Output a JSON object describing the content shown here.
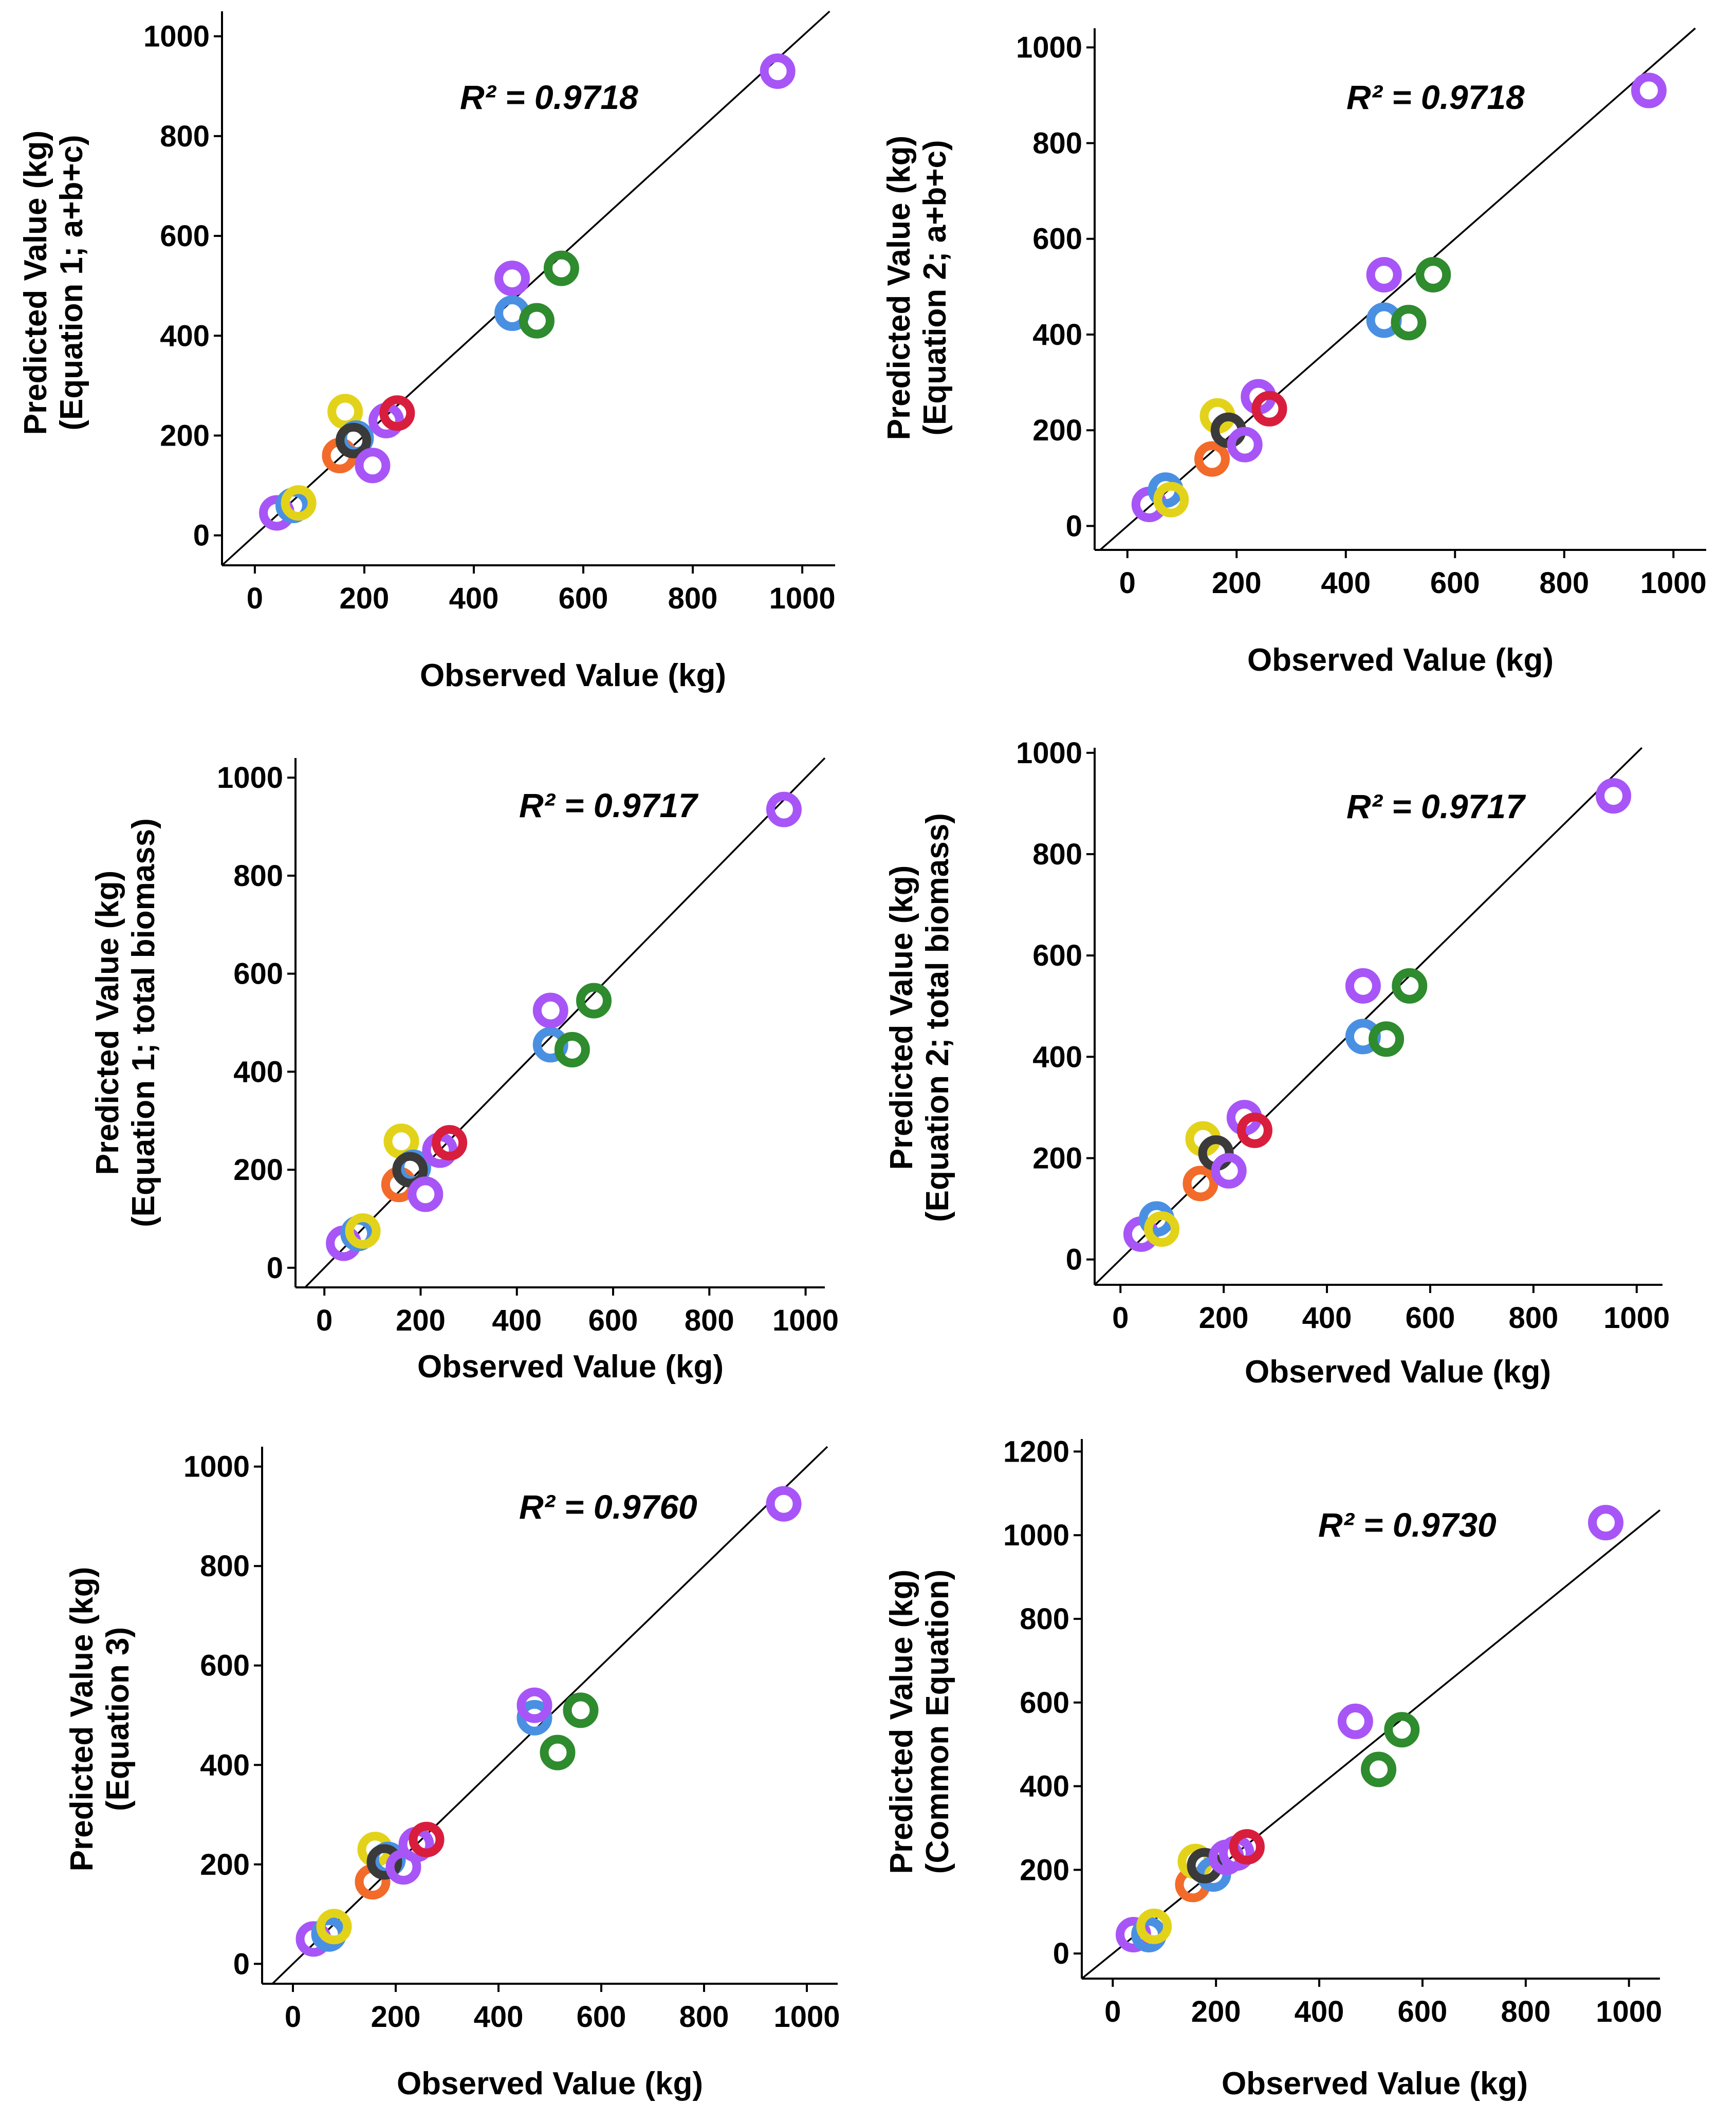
{
  "colors": {
    "purple": "#A855F7",
    "blue": "#4A90E2",
    "green": "#2E8B2E",
    "red": "#D81E3C",
    "orange": "#F26B2A",
    "yellow": "#E2D31A",
    "black": "#3A3A3A",
    "axis": "#000000"
  },
  "chart_data": [
    {
      "type": "scatter",
      "xlabel": "Observed Value (kg)",
      "ylabel_lines": [
        "Predicted Value (kg)",
        "(Equation 1; a+b+c)"
      ],
      "r2_label": "R² = 0.9718",
      "xlim": [
        -60,
        1060
      ],
      "ylim": [
        -60,
        1050
      ],
      "xticks": [
        0,
        200,
        400,
        600,
        800,
        1000
      ],
      "yticks": [
        0,
        200,
        400,
        600,
        800,
        1000
      ],
      "ytick_labels": [
        "0",
        "200",
        "400",
        "600",
        "800",
        "1000"
      ],
      "xtick_labels": [
        "0",
        "200",
        "400",
        "600",
        "800",
        "1000"
      ],
      "points": [
        {
          "x": 40,
          "y": 45,
          "color": "purple"
        },
        {
          "x": 70,
          "y": 60,
          "color": "blue"
        },
        {
          "x": 80,
          "y": 65,
          "color": "yellow"
        },
        {
          "x": 155,
          "y": 160,
          "color": "orange"
        },
        {
          "x": 165,
          "y": 248,
          "color": "yellow"
        },
        {
          "x": 185,
          "y": 195,
          "color": "blue"
        },
        {
          "x": 180,
          "y": 190,
          "color": "black"
        },
        {
          "x": 215,
          "y": 140,
          "color": "purple"
        },
        {
          "x": 240,
          "y": 230,
          "color": "purple"
        },
        {
          "x": 260,
          "y": 245,
          "color": "red"
        },
        {
          "x": 470,
          "y": 445,
          "color": "blue"
        },
        {
          "x": 470,
          "y": 515,
          "color": "purple"
        },
        {
          "x": 515,
          "y": 430,
          "color": "green"
        },
        {
          "x": 560,
          "y": 535,
          "color": "green"
        },
        {
          "x": 955,
          "y": 930,
          "color": "purple"
        }
      ]
    },
    {
      "type": "scatter",
      "xlabel": "Observed Value (kg)",
      "ylabel_lines": [
        "Predicted Value (kg)",
        "(Equation 2; a+b+c)"
      ],
      "r2_label": "R² = 0.9718",
      "xlim": [
        -60,
        1060
      ],
      "ylim": [
        -50,
        1040
      ],
      "xticks": [
        0,
        200,
        400,
        600,
        800,
        1000
      ],
      "yticks": [
        0,
        200,
        400,
        600,
        800,
        1000
      ],
      "ytick_labels": [
        "0",
        "200",
        "400",
        "600",
        "800",
        "1000"
      ],
      "xtick_labels": [
        "0",
        "200",
        "400",
        "600",
        "800",
        "1000"
      ],
      "points": [
        {
          "x": 40,
          "y": 45,
          "color": "purple"
        },
        {
          "x": 70,
          "y": 75,
          "color": "blue"
        },
        {
          "x": 80,
          "y": 55,
          "color": "yellow"
        },
        {
          "x": 155,
          "y": 140,
          "color": "orange"
        },
        {
          "x": 165,
          "y": 230,
          "color": "yellow"
        },
        {
          "x": 185,
          "y": 200,
          "color": "black"
        },
        {
          "x": 215,
          "y": 170,
          "color": "purple"
        },
        {
          "x": 240,
          "y": 270,
          "color": "purple"
        },
        {
          "x": 260,
          "y": 245,
          "color": "red"
        },
        {
          "x": 470,
          "y": 430,
          "color": "blue"
        },
        {
          "x": 470,
          "y": 525,
          "color": "purple"
        },
        {
          "x": 515,
          "y": 425,
          "color": "green"
        },
        {
          "x": 560,
          "y": 525,
          "color": "green"
        },
        {
          "x": 955,
          "y": 910,
          "color": "purple"
        }
      ]
    },
    {
      "type": "scatter",
      "xlabel": "Observed Value (kg)",
      "ylabel_lines": [
        "Predicted Value (kg)",
        "(Equation 1; total biomass)"
      ],
      "r2_label": "R² = 0.9717",
      "xlim": [
        -60,
        1040
      ],
      "ylim": [
        -40,
        1040
      ],
      "xticks": [
        0,
        200,
        400,
        600,
        800,
        1000
      ],
      "yticks": [
        0,
        200,
        400,
        600,
        800,
        1000
      ],
      "ytick_labels": [
        "0",
        "200",
        "400",
        "600",
        "800",
        "1000"
      ],
      "xtick_labels": [
        "0",
        "200",
        "400",
        "600",
        "800",
        "1000"
      ],
      "points": [
        {
          "x": 40,
          "y": 50,
          "color": "purple"
        },
        {
          "x": 70,
          "y": 70,
          "color": "blue"
        },
        {
          "x": 80,
          "y": 75,
          "color": "yellow"
        },
        {
          "x": 155,
          "y": 170,
          "color": "orange"
        },
        {
          "x": 160,
          "y": 258,
          "color": "yellow"
        },
        {
          "x": 185,
          "y": 205,
          "color": "blue"
        },
        {
          "x": 178,
          "y": 200,
          "color": "black"
        },
        {
          "x": 210,
          "y": 150,
          "color": "purple"
        },
        {
          "x": 240,
          "y": 240,
          "color": "purple"
        },
        {
          "x": 260,
          "y": 255,
          "color": "red"
        },
        {
          "x": 470,
          "y": 455,
          "color": "blue"
        },
        {
          "x": 470,
          "y": 525,
          "color": "purple"
        },
        {
          "x": 515,
          "y": 445,
          "color": "green"
        },
        {
          "x": 560,
          "y": 545,
          "color": "green"
        },
        {
          "x": 955,
          "y": 935,
          "color": "purple"
        }
      ]
    },
    {
      "type": "scatter",
      "xlabel": "Observed Value (kg)",
      "ylabel_lines": [
        "Predicted Value (kg)",
        "(Equation 2; total biomass)"
      ],
      "r2_label": "R² = 0.9717",
      "xlim": [
        -50,
        1050
      ],
      "ylim": [
        -50,
        1010
      ],
      "xticks": [
        0,
        200,
        400,
        600,
        800,
        1000
      ],
      "yticks": [
        0,
        200,
        400,
        600,
        800,
        1000
      ],
      "ytick_labels": [
        "0",
        "200",
        "400",
        "600",
        "800",
        "1000"
      ],
      "xtick_labels": [
        "0",
        "200",
        "400",
        "600",
        "800",
        "1000"
      ],
      "points": [
        {
          "x": 40,
          "y": 50,
          "color": "purple"
        },
        {
          "x": 70,
          "y": 80,
          "color": "blue"
        },
        {
          "x": 80,
          "y": 60,
          "color": "yellow"
        },
        {
          "x": 155,
          "y": 150,
          "color": "orange"
        },
        {
          "x": 160,
          "y": 238,
          "color": "yellow"
        },
        {
          "x": 185,
          "y": 210,
          "color": "black"
        },
        {
          "x": 210,
          "y": 175,
          "color": "purple"
        },
        {
          "x": 240,
          "y": 280,
          "color": "purple"
        },
        {
          "x": 260,
          "y": 255,
          "color": "red"
        },
        {
          "x": 470,
          "y": 440,
          "color": "blue"
        },
        {
          "x": 470,
          "y": 540,
          "color": "purple"
        },
        {
          "x": 515,
          "y": 435,
          "color": "green"
        },
        {
          "x": 560,
          "y": 540,
          "color": "green"
        },
        {
          "x": 955,
          "y": 915,
          "color": "purple"
        }
      ]
    },
    {
      "type": "scatter",
      "xlabel": "Observed Value (kg)",
      "ylabel_lines": [
        "Predicted Value (kg)",
        "(Equation 3)"
      ],
      "r2_label": "R² = 0.9760",
      "xlim": [
        -60,
        1060
      ],
      "ylim": [
        -40,
        1040
      ],
      "xticks": [
        0,
        200,
        400,
        600,
        800,
        1000
      ],
      "yticks": [
        0,
        200,
        400,
        600,
        800,
        1000
      ],
      "ytick_labels": [
        "0",
        "200",
        "400",
        "600",
        "800",
        "1000"
      ],
      "xtick_labels": [
        "0",
        "200",
        "400",
        "600",
        "800",
        "1000"
      ],
      "points": [
        {
          "x": 40,
          "y": 50,
          "color": "purple"
        },
        {
          "x": 70,
          "y": 60,
          "color": "blue"
        },
        {
          "x": 80,
          "y": 75,
          "color": "yellow"
        },
        {
          "x": 155,
          "y": 165,
          "color": "orange"
        },
        {
          "x": 160,
          "y": 230,
          "color": "yellow"
        },
        {
          "x": 185,
          "y": 210,
          "color": "blue"
        },
        {
          "x": 178,
          "y": 205,
          "color": "black"
        },
        {
          "x": 215,
          "y": 195,
          "color": "purple"
        },
        {
          "x": 240,
          "y": 240,
          "color": "purple"
        },
        {
          "x": 260,
          "y": 250,
          "color": "red"
        },
        {
          "x": 470,
          "y": 495,
          "color": "blue"
        },
        {
          "x": 470,
          "y": 520,
          "color": "purple"
        },
        {
          "x": 515,
          "y": 425,
          "color": "green"
        },
        {
          "x": 560,
          "y": 510,
          "color": "green"
        },
        {
          "x": 955,
          "y": 925,
          "color": "purple"
        }
      ]
    },
    {
      "type": "scatter",
      "xlabel": "Observed Value (kg)",
      "ylabel_lines": [
        "Predicted Value (kg)",
        "(Common Equation)"
      ],
      "r2_label": "R² = 0.9730",
      "xlim": [
        -60,
        1060
      ],
      "ylim": [
        -60,
        1230
      ],
      "xticks": [
        0,
        200,
        400,
        600,
        800,
        1000
      ],
      "yticks": [
        0,
        200,
        400,
        600,
        800,
        1000,
        1200
      ],
      "ytick_labels": [
        "0",
        "200",
        "400",
        "600",
        "800",
        "1000",
        "1200"
      ],
      "xtick_labels": [
        "0",
        "200",
        "400",
        "600",
        "800",
        "1000"
      ],
      "points": [
        {
          "x": 40,
          "y": 45,
          "color": "purple"
        },
        {
          "x": 70,
          "y": 45,
          "color": "blue"
        },
        {
          "x": 80,
          "y": 65,
          "color": "yellow"
        },
        {
          "x": 155,
          "y": 165,
          "color": "orange"
        },
        {
          "x": 160,
          "y": 220,
          "color": "yellow"
        },
        {
          "x": 195,
          "y": 190,
          "color": "blue"
        },
        {
          "x": 178,
          "y": 210,
          "color": "black"
        },
        {
          "x": 220,
          "y": 230,
          "color": "purple"
        },
        {
          "x": 240,
          "y": 240,
          "color": "purple"
        },
        {
          "x": 260,
          "y": 255,
          "color": "red"
        },
        {
          "x": 470,
          "y": 555,
          "color": "purple"
        },
        {
          "x": 515,
          "y": 440,
          "color": "green"
        },
        {
          "x": 560,
          "y": 535,
          "color": "green"
        },
        {
          "x": 955,
          "y": 1030,
          "color": "purple"
        }
      ]
    }
  ]
}
